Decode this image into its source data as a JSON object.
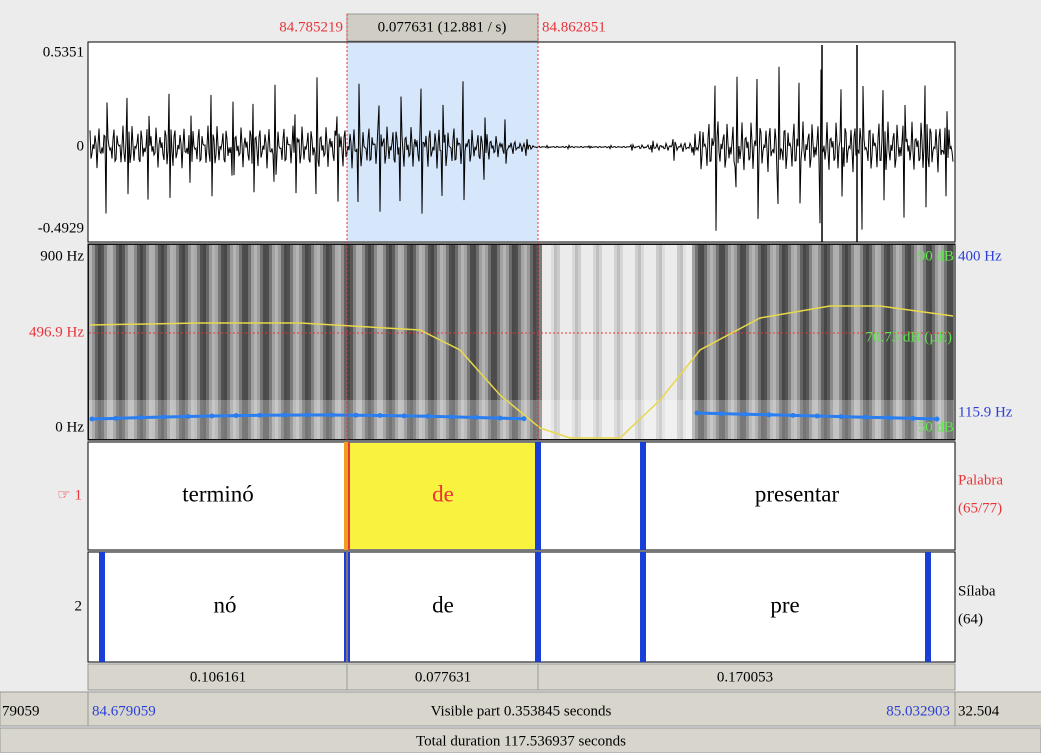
{
  "selection": {
    "start": "84.785219",
    "duration": "0.077631 (12.881 / s)",
    "end": "84.862851"
  },
  "waveform": {
    "max": "0.5351",
    "zero": "0",
    "min": "-0.4929"
  },
  "spectrogram": {
    "freq_max": "900 Hz",
    "cursor_freq": "496.9 Hz",
    "freq_min": "0 Hz",
    "db_max": "90 dB",
    "pitch_max": "400 Hz",
    "cursor_db": "70.73 dB (µE)",
    "db_min": "50 dB",
    "pitch_min": "115.9 Hz"
  },
  "tiers": [
    {
      "label": "☞ 1",
      "name": "Palabra",
      "count": "(65/77)",
      "intervals": [
        "terminó",
        "de",
        "presentar"
      ]
    },
    {
      "label": "2",
      "name": "Sílaba",
      "count": "(64)",
      "intervals": [
        "nó",
        "de",
        "pre"
      ]
    }
  ],
  "durations": [
    "0.106161",
    "0.077631",
    "0.170053"
  ],
  "visible": {
    "left_outside": "79059",
    "start": "84.679059",
    "label": "Visible part 0.353845 seconds",
    "end": "85.032903",
    "right_outside": "32.504"
  },
  "total": "Total duration 117.536937 seconds"
}
